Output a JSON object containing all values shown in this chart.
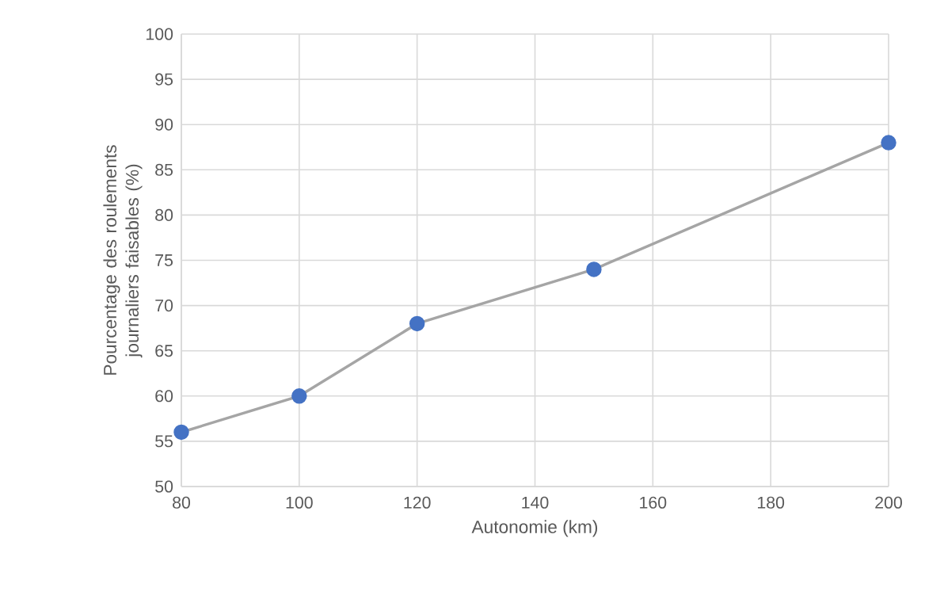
{
  "chart_data": {
    "type": "line",
    "xlabel": "Autonomie (km)",
    "ylabel": "Pourcentage des roulements journaliers faisables (%)",
    "x": [
      80,
      100,
      120,
      150,
      200
    ],
    "series": [
      {
        "color": "#4472c4",
        "values": [
          56,
          60,
          68,
          74,
          88
        ]
      }
    ],
    "xlim": [
      80,
      200
    ],
    "xticks": [
      80,
      100,
      120,
      140,
      160,
      180,
      200
    ],
    "ylim": [
      50,
      100
    ],
    "yticks": [
      50,
      55,
      60,
      65,
      70,
      75,
      80,
      85,
      90,
      95,
      100
    ],
    "grid": true,
    "marker": "circle",
    "line_style": "solid"
  }
}
